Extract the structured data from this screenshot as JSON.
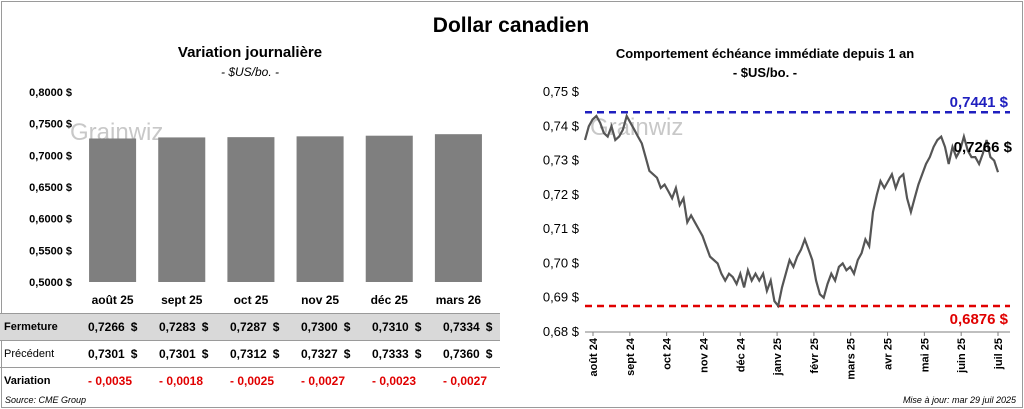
{
  "title": "Dollar canadien",
  "source": "Source: CME Group",
  "updated": "Mise à jour: mar 29 juil 2025",
  "watermark_color": "#c8c8c8",
  "chart_data": [
    {
      "type": "bar",
      "title": "Variation  journalière",
      "subtitle": "- $US/bo. -",
      "categories": [
        "août 25",
        "sept 25",
        "oct 25",
        "nov 25",
        "déc 25",
        "mars 26"
      ],
      "values": [
        0.7266,
        0.7283,
        0.7287,
        0.73,
        0.731,
        0.7334
      ],
      "ylim": [
        0.5,
        0.8
      ],
      "yticks": [
        "0,8000 $",
        "0,7500 $",
        "0,7000 $",
        "0,6500 $",
        "0,6000 $",
        "0,5500 $",
        "0,5000 $"
      ],
      "bar_color": "#7f7f7f",
      "table": {
        "rows": [
          {
            "label": "Fermeture",
            "values": [
              "0,7266",
              "0,7283",
              "0,7287",
              "0,7300",
              "0,7310",
              "0,7334"
            ],
            "unit": "$"
          },
          {
            "label": "Précédent",
            "values": [
              "0,7301",
              "0,7301",
              "0,7312",
              "0,7327",
              "0,7333",
              "0,7360"
            ],
            "unit": "$"
          },
          {
            "label": "Variation",
            "values": [
              "- 0,0035",
              "- 0,0018",
              "- 0,0025",
              "- 0,0027",
              "- 0,0023",
              "- 0,0027"
            ],
            "unit": ""
          }
        ]
      }
    },
    {
      "type": "line",
      "title": "Comportement échéance immédiate depuis 1 an",
      "subtitle": "- $US/bo. -",
      "ylim": [
        0.68,
        0.75
      ],
      "yticks": [
        "0,75 $",
        "0,74 $",
        "0,73 $",
        "0,72 $",
        "0,71 $",
        "0,70 $",
        "0,69 $",
        "0,68 $"
      ],
      "xticks": [
        "août 24",
        "sept 24",
        "oct 24",
        "nov 24",
        "déc 24",
        "janv 25",
        "févr 25",
        "mars 25",
        "avr 25",
        "mai 25",
        "juin 25",
        "juil 25"
      ],
      "high": {
        "value": 0.7441,
        "label": "0,7441 $",
        "color": "#1f1fbf"
      },
      "low": {
        "value": 0.6876,
        "label": "0,6876 $",
        "color": "#e00000"
      },
      "last": {
        "value": 0.7266,
        "label": "0,7266 $"
      },
      "line_color": "#555555",
      "points": [
        [
          0,
          0.736
        ],
        [
          2,
          0.74
        ],
        [
          4,
          0.742
        ],
        [
          6,
          0.743
        ],
        [
          8,
          0.741
        ],
        [
          10,
          0.738
        ],
        [
          12,
          0.737
        ],
        [
          14,
          0.74
        ],
        [
          16,
          0.736
        ],
        [
          18,
          0.737
        ],
        [
          20,
          0.739
        ],
        [
          22,
          0.743
        ],
        [
          24,
          0.741
        ],
        [
          26,
          0.739
        ],
        [
          28,
          0.737
        ],
        [
          30,
          0.735
        ],
        [
          32,
          0.731
        ],
        [
          34,
          0.727
        ],
        [
          36,
          0.726
        ],
        [
          38,
          0.725
        ],
        [
          40,
          0.722
        ],
        [
          42,
          0.723
        ],
        [
          44,
          0.721
        ],
        [
          46,
          0.719
        ],
        [
          48,
          0.722
        ],
        [
          50,
          0.717
        ],
        [
          52,
          0.719
        ],
        [
          54,
          0.712
        ],
        [
          56,
          0.714
        ],
        [
          58,
          0.712
        ],
        [
          60,
          0.71
        ],
        [
          62,
          0.708
        ],
        [
          64,
          0.705
        ],
        [
          66,
          0.702
        ],
        [
          68,
          0.701
        ],
        [
          70,
          0.7
        ],
        [
          72,
          0.697
        ],
        [
          74,
          0.695
        ],
        [
          76,
          0.697
        ],
        [
          78,
          0.696
        ],
        [
          80,
          0.694
        ],
        [
          82,
          0.697
        ],
        [
          84,
          0.693
        ],
        [
          86,
          0.698
        ],
        [
          88,
          0.695
        ],
        [
          90,
          0.697
        ],
        [
          92,
          0.695
        ],
        [
          94,
          0.697
        ],
        [
          96,
          0.692
        ],
        [
          98,
          0.695
        ],
        [
          100,
          0.689
        ],
        [
          102,
          0.6876
        ],
        [
          104,
          0.693
        ],
        [
          106,
          0.697
        ],
        [
          108,
          0.701
        ],
        [
          110,
          0.699
        ],
        [
          112,
          0.702
        ],
        [
          114,
          0.704
        ],
        [
          116,
          0.707
        ],
        [
          118,
          0.704
        ],
        [
          120,
          0.701
        ],
        [
          122,
          0.695
        ],
        [
          124,
          0.691
        ],
        [
          126,
          0.69
        ],
        [
          128,
          0.694
        ],
        [
          130,
          0.697
        ],
        [
          132,
          0.695
        ],
        [
          134,
          0.699
        ],
        [
          136,
          0.7
        ],
        [
          138,
          0.698
        ],
        [
          140,
          0.699
        ],
        [
          142,
          0.697
        ],
        [
          144,
          0.701
        ],
        [
          146,
          0.703
        ],
        [
          148,
          0.707
        ],
        [
          150,
          0.705
        ],
        [
          152,
          0.715
        ],
        [
          154,
          0.72
        ],
        [
          156,
          0.724
        ],
        [
          158,
          0.722
        ],
        [
          160,
          0.724
        ],
        [
          162,
          0.726
        ],
        [
          164,
          0.722
        ],
        [
          166,
          0.725
        ],
        [
          168,
          0.726
        ],
        [
          170,
          0.719
        ],
        [
          172,
          0.715
        ],
        [
          174,
          0.719
        ],
        [
          176,
          0.723
        ],
        [
          178,
          0.726
        ],
        [
          180,
          0.729
        ],
        [
          182,
          0.731
        ],
        [
          184,
          0.734
        ],
        [
          186,
          0.736
        ],
        [
          188,
          0.737
        ],
        [
          190,
          0.734
        ],
        [
          192,
          0.729
        ],
        [
          194,
          0.734
        ],
        [
          196,
          0.731
        ],
        [
          198,
          0.733
        ],
        [
          200,
          0.737
        ],
        [
          202,
          0.733
        ],
        [
          204,
          0.731
        ],
        [
          206,
          0.731
        ],
        [
          208,
          0.729
        ],
        [
          210,
          0.732
        ],
        [
          212,
          0.736
        ],
        [
          214,
          0.731
        ],
        [
          216,
          0.73
        ],
        [
          218,
          0.7266
        ]
      ]
    }
  ]
}
